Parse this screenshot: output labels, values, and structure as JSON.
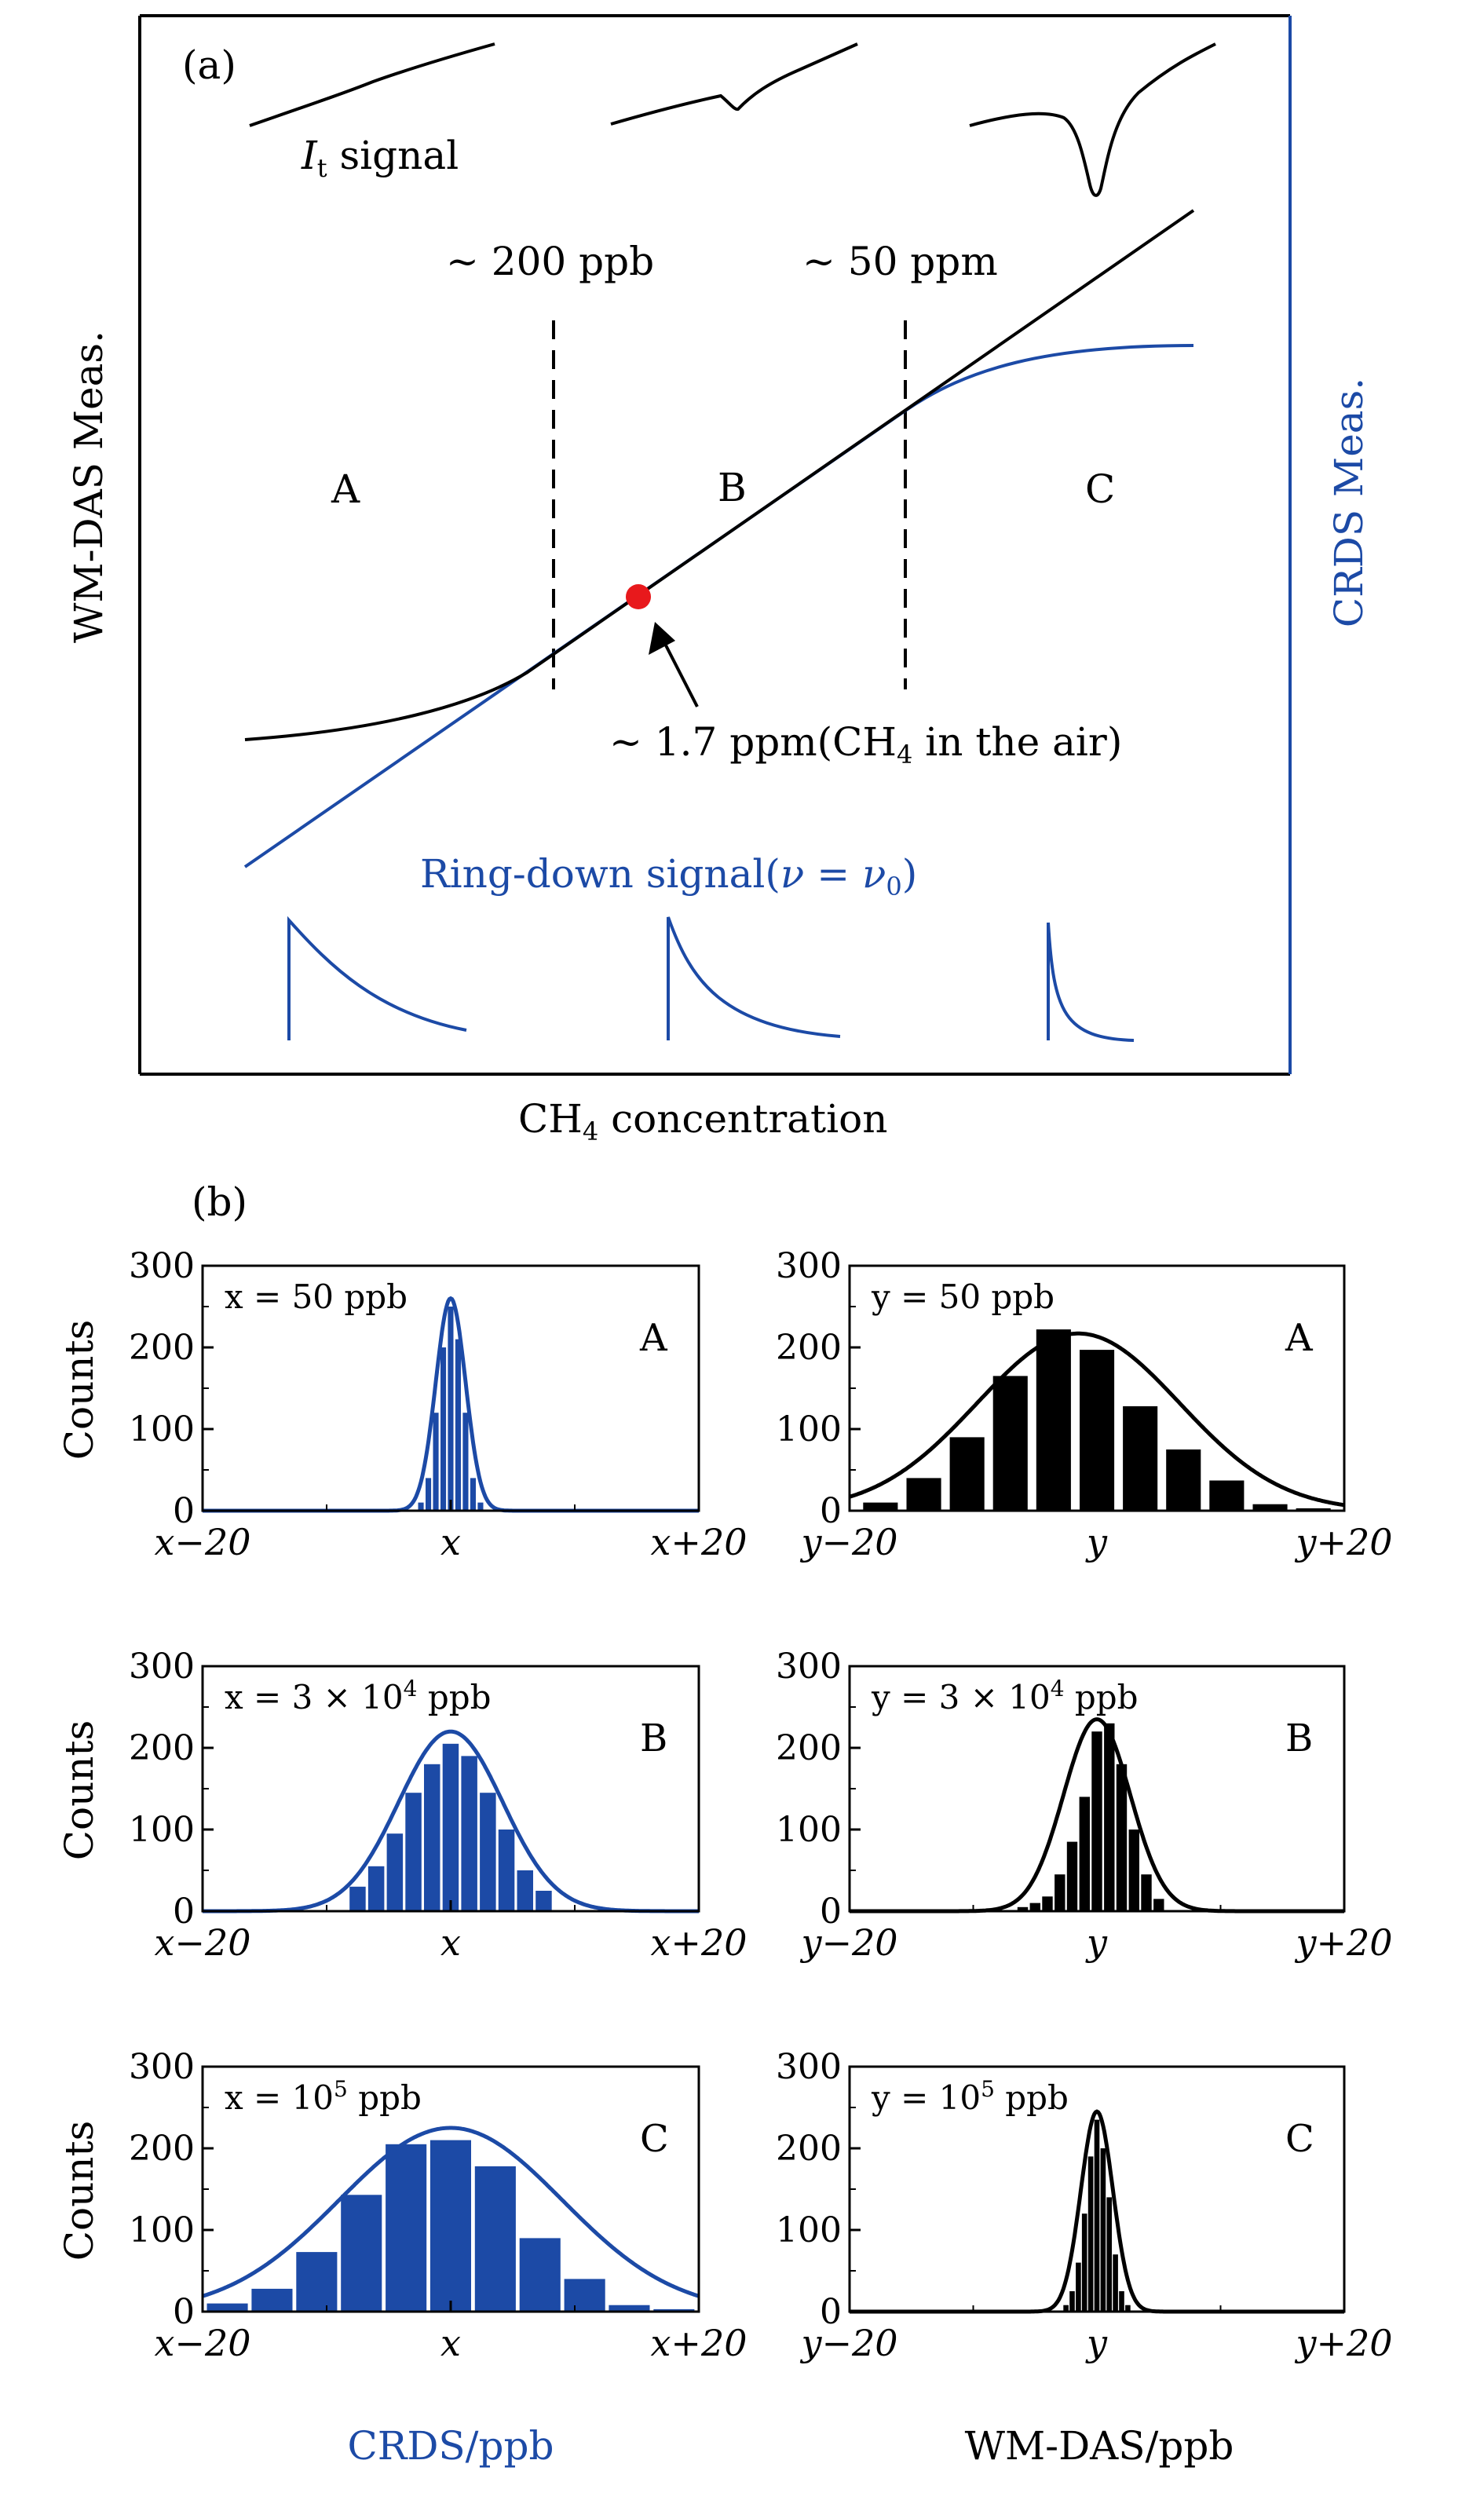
{
  "colors": {
    "crds": "#1c4aa6",
    "wm": "#000000",
    "marker": "#e8191c"
  },
  "panel_a": {
    "label": "(a)",
    "ylabel_left": "WM-DAS Meas.",
    "ylabel_right": "CRDS Meas.",
    "xlabel_main": "CH",
    "xlabel_sub": "4",
    "xlabel_rest": " concentration",
    "it_main": "I",
    "it_sub": "t",
    "it_rest": " signal",
    "threshold1": "~ 200 ppb",
    "threshold2": "~ 50 ppm",
    "region_a": "A",
    "region_b": "B",
    "region_c": "C",
    "air_pre": "~ 1.7 ppm(CH",
    "air_sub": "4",
    "air_post": " in the air)",
    "ringdown_pre": "Ring-down signal(",
    "ringdown_nu": "ν",
    "ringdown_eq": " = ",
    "ringdown_nu0": "ν",
    "ringdown_sub": "0",
    "ringdown_post": ")"
  },
  "panel_b": {
    "label": "(b)",
    "ylabel": "Counts",
    "xlabel_left": "CRDS/ppb",
    "xlabel_right": "WM-DAS/ppb",
    "y_ticks": [
      "0",
      "100",
      "200",
      "300"
    ],
    "x_ticks_x": [
      "x−20",
      "x",
      "x+20"
    ],
    "x_ticks_y": [
      "y−20",
      "y",
      "y+20"
    ]
  },
  "chart_data": [
    {
      "type": "bar",
      "panel": "b",
      "row": "A",
      "instrument": "CRDS",
      "color": "#1c4aa6",
      "var": "x",
      "value_main": "x = 50 ppb",
      "value_exp": "",
      "value_unit": "",
      "region": "A",
      "xlim": [
        -20,
        20
      ],
      "ylim": [
        0,
        300
      ],
      "bar_width": 0.45,
      "bins": [
        -2.4,
        -1.8,
        -1.2,
        -0.6,
        0,
        0.6,
        1.2,
        1.8,
        2.4
      ],
      "values": [
        10,
        40,
        120,
        200,
        250,
        210,
        120,
        40,
        10
      ],
      "fit": {
        "peak": 260,
        "center": 0,
        "sigma": 1.2
      }
    },
    {
      "type": "bar",
      "panel": "b",
      "row": "A",
      "instrument": "WM-DAS",
      "color": "#000000",
      "var": "y",
      "value_main": "y = 50 ppb",
      "value_exp": "",
      "value_unit": "",
      "region": "A",
      "xlim": [
        -20,
        20
      ],
      "ylim": [
        0,
        300
      ],
      "bar_width": 2.8,
      "bins": [
        -17.5,
        -14,
        -10.5,
        -7,
        -3.5,
        0,
        3.5,
        7,
        10.5,
        14,
        17.5
      ],
      "values": [
        10,
        40,
        90,
        165,
        222,
        197,
        128,
        75,
        37,
        8,
        3
      ],
      "fit": {
        "peak": 217,
        "center": -1.5,
        "sigma": 8.2
      }
    },
    {
      "type": "bar",
      "panel": "b",
      "row": "B",
      "instrument": "CRDS",
      "color": "#1c4aa6",
      "var": "x",
      "value_main": "x = 3 × 10",
      "value_exp": "4",
      "value_unit": " ppb",
      "region": "B",
      "xlim": [
        -20,
        20
      ],
      "ylim": [
        0,
        300
      ],
      "bar_width": 1.3,
      "bins": [
        -7.5,
        -6,
        -4.5,
        -3,
        -1.5,
        0,
        1.5,
        3,
        4.5,
        6,
        7.5
      ],
      "values": [
        30,
        55,
        95,
        145,
        180,
        205,
        190,
        145,
        100,
        50,
        25
      ],
      "fit": {
        "peak": 220,
        "center": 0,
        "sigma": 4.2
      }
    },
    {
      "type": "bar",
      "panel": "b",
      "row": "B",
      "instrument": "WM-DAS",
      "color": "#000000",
      "var": "y",
      "value_main": "y = 3 × 10",
      "value_exp": "4",
      "value_unit": " ppb",
      "region": "B",
      "xlim": [
        -20,
        20
      ],
      "ylim": [
        0,
        300
      ],
      "bar_width": 0.85,
      "bins": [
        -6,
        -5,
        -4,
        -3,
        -2,
        -1,
        0,
        1,
        2,
        3,
        4,
        5
      ],
      "values": [
        5,
        10,
        18,
        45,
        85,
        140,
        220,
        230,
        180,
        100,
        45,
        15
      ],
      "fit": {
        "peak": 235,
        "center": 0,
        "sigma": 2.7
      }
    },
    {
      "type": "bar",
      "panel": "b",
      "row": "C",
      "instrument": "CRDS",
      "color": "#1c4aa6",
      "var": "x",
      "value_main": "x = 10",
      "value_exp": "5",
      "value_unit": " ppb",
      "region": "C",
      "xlim": [
        -20,
        20
      ],
      "ylim": [
        0,
        300
      ],
      "bar_width": 3.3,
      "bins": [
        -18,
        -14.4,
        -10.8,
        -7.2,
        -3.6,
        0,
        3.6,
        7.2,
        10.8,
        14.4,
        18
      ],
      "values": [
        10,
        28,
        73,
        143,
        205,
        210,
        178,
        90,
        40,
        8,
        3
      ],
      "fit": {
        "peak": 225,
        "center": 0,
        "sigma": 9.0
      }
    },
    {
      "type": "bar",
      "panel": "b",
      "row": "C",
      "instrument": "WM-DAS",
      "color": "#000000",
      "var": "y",
      "value_main": "y = 10",
      "value_exp": "5",
      "value_unit": " ppb",
      "region": "C",
      "xlim": [
        -20,
        20
      ],
      "ylim": [
        0,
        300
      ],
      "bar_width": 0.42,
      "bins": [
        -2.5,
        -2,
        -1.5,
        -1,
        -0.5,
        0,
        0.5,
        1,
        1.5,
        2,
        2.5
      ],
      "values": [
        8,
        25,
        60,
        120,
        190,
        235,
        200,
        140,
        70,
        25,
        8
      ],
      "fit": {
        "peak": 245,
        "center": 0,
        "sigma": 1.3
      }
    }
  ]
}
